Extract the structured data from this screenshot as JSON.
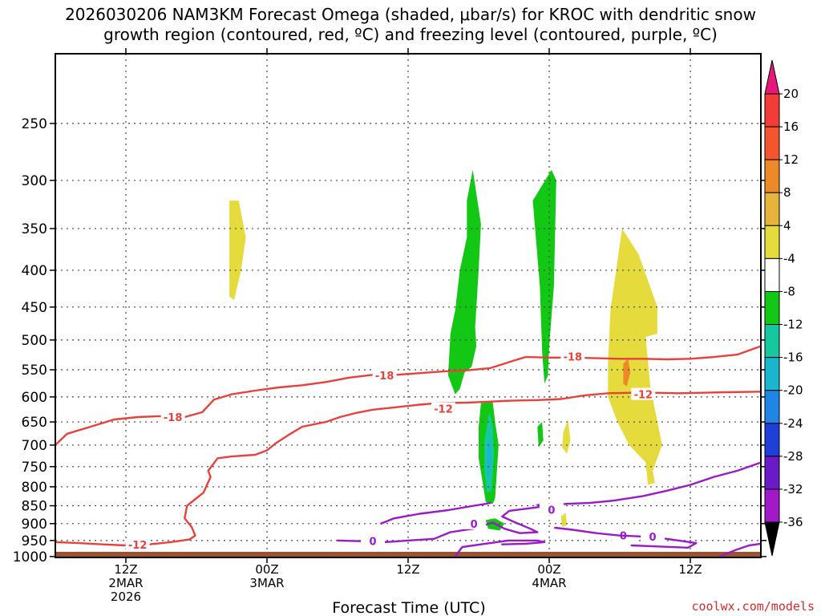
{
  "title": {
    "line1": "2026030206 NAM3KM Forecast Omega (shaded, μbar/s) for KROC with dendritic snow",
    "line2": "growth region (contoured, red, ºC) and freezing level (contoured, purple, ºC)"
  },
  "xlabel": "Forecast Time (UTC)",
  "credit": "coolwx.com/models",
  "colors": {
    "dgz": "#e8413c",
    "freezing": "#9a1ac7",
    "terrain": "#9a5331",
    "grid": "#444444"
  },
  "chart_data": {
    "type": "time-height cross-section",
    "y_axis": {
      "units": "hPa",
      "reversed": true,
      "scale": "pressure (log-like)",
      "range": [
        1000,
        200
      ],
      "ticks": [
        250,
        300,
        350,
        400,
        450,
        500,
        550,
        600,
        650,
        700,
        750,
        800,
        850,
        900,
        950,
        1000
      ]
    },
    "x_axis": {
      "units": "hours from 2026-03-02 06Z",
      "range": [
        0,
        60
      ],
      "ticks": [
        {
          "h": 6,
          "lines": [
            "12Z",
            "2MAR",
            "2026"
          ]
        },
        {
          "h": 18,
          "lines": [
            "00Z",
            "3MAR"
          ]
        },
        {
          "h": 30,
          "lines": [
            "12Z"
          ]
        },
        {
          "h": 42,
          "lines": [
            "00Z",
            "4MAR"
          ]
        },
        {
          "h": 54,
          "lines": [
            "12Z"
          ]
        }
      ]
    },
    "grid": true,
    "colorbar": {
      "labels": [
        "20",
        "16",
        "12",
        "8",
        "4",
        "-4",
        "-8",
        "-12",
        "-16",
        "-20",
        "-24",
        "-28",
        "-32",
        "-36"
      ],
      "bins": [
        {
          "range": [
            20,
            24
          ],
          "color": "#e8177a"
        },
        {
          "range": [
            16,
            20
          ],
          "color": "#f23c36"
        },
        {
          "range": [
            12,
            16
          ],
          "color": "#f2562e"
        },
        {
          "range": [
            8,
            12
          ],
          "color": "#ec8a2a"
        },
        {
          "range": [
            4,
            8
          ],
          "color": "#e6b43a"
        },
        {
          "range": [
            -4,
            4
          ],
          "color": "#e6db3c"
        },
        {
          "range": [
            -8,
            -4
          ],
          "color": "#ffffff"
        },
        {
          "range": [
            -12,
            -8
          ],
          "color": "#13c815"
        },
        {
          "range": [
            -16,
            -12
          ],
          "color": "#16c8a0"
        },
        {
          "range": [
            -20,
            -16
          ],
          "color": "#1ab6cf"
        },
        {
          "range": [
            -24,
            -20
          ],
          "color": "#1f86e6"
        },
        {
          "range": [
            -28,
            -24
          ],
          "color": "#1e3fd8"
        },
        {
          "range": [
            -32,
            -28
          ],
          "color": "#6b1ac7"
        },
        {
          "range": [
            -36,
            -32
          ],
          "color": "#a21ac8"
        },
        {
          "range": [
            -40,
            -36
          ],
          "color": "#a8a8a8"
        },
        {
          "range": [
            -44,
            -40
          ],
          "color": "#000000"
        }
      ]
    },
    "omega_regions": [
      {
        "color": "#e6db3c",
        "value": "4 to 8",
        "points": [
          [
            14.8,
            320
          ],
          [
            15.6,
            320
          ],
          [
            16.2,
            360
          ],
          [
            15.8,
            400
          ],
          [
            15.2,
            440
          ],
          [
            14.8,
            435
          ]
        ]
      },
      {
        "color": "#e6db3c",
        "value": "4 to 8",
        "points": [
          [
            47.2,
            455
          ],
          [
            48.2,
            350
          ],
          [
            49.6,
            380
          ],
          [
            51.2,
            450
          ],
          [
            51.2,
            490
          ],
          [
            50.2,
            495
          ],
          [
            50.6,
            580
          ],
          [
            51.6,
            700
          ],
          [
            50.8,
            760
          ],
          [
            51.0,
            790
          ],
          [
            50.4,
            795
          ],
          [
            50.2,
            740
          ],
          [
            48.8,
            700
          ],
          [
            47.8,
            650
          ],
          [
            47.0,
            600
          ],
          [
            47.0,
            540
          ]
        ]
      },
      {
        "color": "#ec8a2a",
        "value": "8 to 12",
        "points": [
          [
            48.3,
            540
          ],
          [
            48.7,
            530
          ],
          [
            48.9,
            555
          ],
          [
            48.6,
            580
          ],
          [
            48.3,
            575
          ]
        ]
      },
      {
        "color": "#e6db3c",
        "value": "4 to 8",
        "points": [
          [
            43.2,
            672
          ],
          [
            43.6,
            645
          ],
          [
            43.8,
            690
          ],
          [
            43.5,
            720
          ],
          [
            43.1,
            705
          ]
        ]
      },
      {
        "color": "#e6db3c",
        "value": "4 to 8",
        "points": [
          [
            43.0,
            875
          ],
          [
            43.4,
            870
          ],
          [
            43.5,
            905
          ],
          [
            43.1,
            910
          ]
        ]
      },
      {
        "color": "#13c815",
        "value": "-8 to -12",
        "points": [
          [
            35.0,
            320
          ],
          [
            35.5,
            290
          ],
          [
            36.2,
            345
          ],
          [
            36.0,
            400
          ],
          [
            35.7,
            480
          ],
          [
            35.8,
            510
          ],
          [
            35.4,
            545
          ],
          [
            34.8,
            555
          ],
          [
            34.4,
            585
          ],
          [
            34.0,
            595
          ],
          [
            33.4,
            560
          ],
          [
            33.6,
            490
          ],
          [
            34.0,
            455
          ],
          [
            34.4,
            400
          ],
          [
            35.0,
            360
          ]
        ]
      },
      {
        "color": "#13c815",
        "value": "-8 to -12",
        "points": [
          [
            42.2,
            290
          ],
          [
            42.6,
            300
          ],
          [
            42.4,
            420
          ],
          [
            42.0,
            510
          ],
          [
            41.9,
            560
          ],
          [
            41.6,
            575
          ],
          [
            41.4,
            520
          ],
          [
            41.2,
            420
          ],
          [
            40.6,
            320
          ]
        ]
      },
      {
        "color": "#13c815",
        "value": "-8 to -12",
        "points": [
          [
            36.2,
            612
          ],
          [
            37.2,
            610
          ],
          [
            37.4,
            650
          ],
          [
            37.7,
            700
          ],
          [
            37.4,
            830
          ],
          [
            37.2,
            845
          ],
          [
            36.6,
            840
          ],
          [
            36.4,
            800
          ],
          [
            36.0,
            730
          ],
          [
            36.0,
            660
          ]
        ]
      },
      {
        "color": "#16c8a0",
        "value": "-12 to -16",
        "points": [
          [
            36.5,
            690
          ],
          [
            36.9,
            630
          ],
          [
            37.2,
            660
          ],
          [
            37.3,
            720
          ],
          [
            37.1,
            810
          ],
          [
            36.7,
            815
          ],
          [
            36.5,
            760
          ]
        ]
      },
      {
        "color": "#1ab6cf",
        "value": "-16 to -20",
        "points": [
          [
            36.7,
            700
          ],
          [
            37.0,
            690
          ],
          [
            37.1,
            740
          ],
          [
            36.9,
            780
          ],
          [
            36.7,
            770
          ]
        ]
      },
      {
        "color": "#13c815",
        "value": "-8 to -12",
        "points": [
          [
            41.0,
            660
          ],
          [
            41.4,
            650
          ],
          [
            41.5,
            690
          ],
          [
            41.1,
            705
          ]
        ]
      },
      {
        "color": "#13c815",
        "value": "-8 to -12",
        "points": [
          [
            36.6,
            890
          ],
          [
            37.4,
            885
          ],
          [
            38.2,
            900
          ],
          [
            37.8,
            920
          ],
          [
            36.8,
            915
          ]
        ]
      }
    ],
    "dgz_contours": [
      {
        "label": "-18",
        "label_points": [
          [
            10.0,
            640
          ],
          [
            28.0,
            560
          ],
          [
            44.0,
            527
          ]
        ],
        "points": [
          [
            0,
            700
          ],
          [
            1,
            675
          ],
          [
            3,
            660
          ],
          [
            5,
            645
          ],
          [
            7,
            640
          ],
          [
            9,
            638
          ],
          [
            11,
            640
          ],
          [
            12.5,
            630
          ],
          [
            13.5,
            605
          ],
          [
            15,
            595
          ],
          [
            17,
            588
          ],
          [
            19,
            582
          ],
          [
            21,
            578
          ],
          [
            23,
            572
          ],
          [
            25,
            564
          ],
          [
            27,
            559
          ],
          [
            29,
            559
          ],
          [
            31,
            556
          ],
          [
            33,
            553
          ],
          [
            35,
            551
          ],
          [
            37,
            547
          ],
          [
            39,
            534
          ],
          [
            40,
            528
          ],
          [
            42,
            529
          ],
          [
            44,
            529
          ],
          [
            46,
            530
          ],
          [
            48,
            531
          ],
          [
            50,
            531
          ],
          [
            52,
            532
          ],
          [
            54,
            531
          ],
          [
            56,
            528
          ],
          [
            58,
            524
          ],
          [
            60,
            510
          ]
        ]
      },
      {
        "label": "-12",
        "label_points": [
          [
            7.0,
            963
          ],
          [
            33.0,
            623
          ],
          [
            50.0,
            595
          ]
        ],
        "points": [
          [
            0,
            955
          ],
          [
            2,
            958
          ],
          [
            4,
            962
          ],
          [
            6,
            965
          ],
          [
            8,
            962
          ],
          [
            9.8,
            955
          ],
          [
            11.4,
            947
          ],
          [
            11.9,
            935
          ],
          [
            11.6,
            910
          ],
          [
            11.0,
            885
          ],
          [
            11.2,
            850
          ],
          [
            12.6,
            815
          ],
          [
            13.2,
            775
          ],
          [
            13.0,
            760
          ],
          [
            13.8,
            730
          ],
          [
            15,
            726
          ],
          [
            17,
            722
          ],
          [
            18,
            712
          ],
          [
            18.8,
            695
          ],
          [
            20,
            675
          ],
          [
            21,
            660
          ],
          [
            23,
            650
          ],
          [
            24.2,
            640
          ],
          [
            25.5,
            632
          ],
          [
            27,
            625
          ],
          [
            29,
            620
          ],
          [
            31,
            615
          ],
          [
            32.5,
            612
          ],
          [
            35,
            611
          ],
          [
            37,
            609
          ],
          [
            39,
            607
          ],
          [
            41,
            606
          ],
          [
            43,
            604
          ],
          [
            45,
            597
          ],
          [
            47,
            593
          ],
          [
            49,
            592
          ],
          [
            51,
            592
          ],
          [
            53,
            593
          ],
          [
            55,
            592
          ],
          [
            57,
            591
          ],
          [
            60,
            590
          ]
        ]
      }
    ],
    "freezing_contours": [
      {
        "label": "0",
        "label_points": [
          [
            27.0,
            952
          ]
        ],
        "points": [
          [
            24.0,
            950
          ],
          [
            26,
            952
          ],
          [
            28,
            955
          ],
          [
            30,
            950
          ],
          [
            32.2,
            945
          ],
          [
            33.6,
            925
          ],
          [
            35.5,
            915
          ],
          [
            37.2,
            897
          ],
          [
            38.2,
            915
          ],
          [
            39.5,
            928
          ],
          [
            41.0,
            925
          ],
          [
            40.4,
            915
          ],
          [
            39.2,
            898
          ],
          [
            38.0,
            880
          ],
          [
            38.6,
            864
          ],
          [
            40.8,
            855
          ],
          [
            42.2,
            848
          ]
        ]
      },
      {
        "label": "0",
        "label_points": [
          [
            35.6,
            900
          ]
        ],
        "points": [
          [
            27.7,
            900
          ],
          [
            28.8,
            885
          ],
          [
            31,
            872
          ],
          [
            33.4,
            862
          ],
          [
            35.6,
            850
          ],
          [
            36.6,
            845
          ],
          [
            37.0,
            842
          ]
        ]
      },
      {
        "label": "0",
        "label_points": [
          [
            42.2,
            861
          ]
        ],
        "points": [
          [
            41.0,
            848
          ],
          [
            42.4,
            848
          ],
          [
            43.5,
            845
          ],
          [
            45.5,
            842
          ],
          [
            47.5,
            836
          ],
          [
            50,
            824
          ],
          [
            52,
            810
          ],
          [
            54,
            795
          ],
          [
            56,
            775
          ],
          [
            58,
            760
          ],
          [
            60,
            740
          ]
        ]
      },
      {
        "label": "0",
        "label_points": [
          [
            48.3,
            935
          ]
        ],
        "points": [
          [
            34.0,
            1000
          ],
          [
            34.6,
            970
          ],
          [
            36.2,
            962
          ],
          [
            38.5,
            950
          ],
          [
            41.0,
            950
          ],
          [
            41.6,
            955
          ],
          [
            40.0,
            960
          ],
          [
            38.0,
            962
          ]
        ]
      },
      {
        "label": "0",
        "label_points": [
          [
            50.8,
            938
          ]
        ],
        "points": [
          [
            42.5,
            912
          ],
          [
            44.0,
            918
          ],
          [
            46,
            928
          ],
          [
            48,
            935
          ],
          [
            50.0,
            938
          ],
          [
            52,
            945
          ],
          [
            54.5,
            958
          ],
          [
            53.8,
            972
          ],
          [
            51,
            968
          ],
          [
            49,
            965
          ]
        ]
      },
      {
        "label": "",
        "label_points": [],
        "points": [
          [
            56.5,
            1000
          ],
          [
            57.8,
            980
          ],
          [
            59,
            965
          ],
          [
            60,
            960
          ]
        ]
      }
    ],
    "terrain_top_hpa": 985
  }
}
